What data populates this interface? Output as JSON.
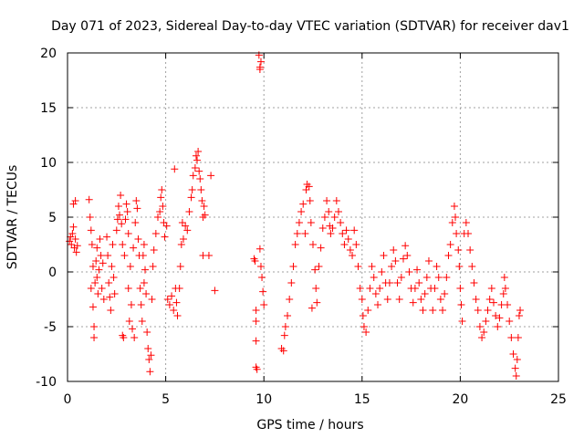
{
  "chart_data": {
    "type": "scatter",
    "title": "Day 071 of 2023, Sidereal Day-to-day VTEC variation (SDTVAR) for receiver dav1",
    "xlabel": "GPS time / hours",
    "ylabel": "SDTVAR / TECUs",
    "xlim": [
      0,
      25
    ],
    "ylim": [
      -10,
      20
    ],
    "xticks": [
      0,
      5,
      10,
      15,
      20,
      25
    ],
    "yticks": [
      -10,
      -5,
      0,
      5,
      10,
      15,
      20
    ],
    "xtick_labels": [
      "0",
      "5",
      "10",
      "15",
      "20",
      "25"
    ],
    "ytick_labels": [
      "-10",
      "-5",
      "0",
      "5",
      "10",
      "15",
      "20"
    ],
    "grid": true,
    "marker": "+",
    "color": "#ff0000",
    "series": [
      {
        "name": "dav1",
        "points": [
          [
            0.1,
            2.8
          ],
          [
            0.15,
            3.2
          ],
          [
            0.2,
            2.5
          ],
          [
            0.25,
            3.5
          ],
          [
            0.3,
            4.1
          ],
          [
            0.3,
            6.2
          ],
          [
            0.35,
            2.2
          ],
          [
            0.4,
            3.0
          ],
          [
            0.4,
            6.5
          ],
          [
            0.45,
            1.8
          ],
          [
            0.5,
            2.4
          ],
          [
            1.1,
            6.6
          ],
          [
            1.15,
            5.0
          ],
          [
            1.2,
            3.8
          ],
          [
            1.2,
            -1.5
          ],
          [
            1.25,
            2.5
          ],
          [
            1.3,
            0.5
          ],
          [
            1.3,
            -3.2
          ],
          [
            1.35,
            -5.0
          ],
          [
            1.35,
            -6.0
          ],
          [
            1.4,
            -1.0
          ],
          [
            1.45,
            1.0
          ],
          [
            1.5,
            2.2
          ],
          [
            1.5,
            -0.5
          ],
          [
            1.55,
            -2.0
          ],
          [
            1.6,
            0.2
          ],
          [
            1.65,
            3.0
          ],
          [
            1.7,
            1.5
          ],
          [
            1.75,
            -1.5
          ],
          [
            1.8,
            0.8
          ],
          [
            1.85,
            -2.5
          ],
          [
            2.0,
            3.2
          ],
          [
            2.05,
            1.5
          ],
          [
            2.1,
            -1.0
          ],
          [
            2.15,
            -2.3
          ],
          [
            2.2,
            -3.5
          ],
          [
            2.25,
            0.5
          ],
          [
            2.3,
            2.5
          ],
          [
            2.35,
            -0.5
          ],
          [
            2.4,
            -2.0
          ],
          [
            2.5,
            3.8
          ],
          [
            2.55,
            4.8
          ],
          [
            2.6,
            6.0
          ],
          [
            2.65,
            5.2
          ],
          [
            2.7,
            7.0
          ],
          [
            2.75,
            4.4
          ],
          [
            2.8,
            2.5
          ],
          [
            2.8,
            -5.8
          ],
          [
            2.85,
            -6.0
          ],
          [
            2.9,
            1.5
          ],
          [
            2.95,
            4.8
          ],
          [
            3.0,
            6.2
          ],
          [
            3.05,
            5.5
          ],
          [
            3.1,
            3.5
          ],
          [
            3.1,
            -1.5
          ],
          [
            3.15,
            -4.5
          ],
          [
            3.2,
            0.5
          ],
          [
            3.25,
            -3.0
          ],
          [
            3.3,
            -5.2
          ],
          [
            3.35,
            2.2
          ],
          [
            3.4,
            -6.0
          ],
          [
            3.45,
            4.5
          ],
          [
            3.5,
            6.5
          ],
          [
            3.55,
            5.8
          ],
          [
            3.6,
            3.0
          ],
          [
            3.65,
            1.5
          ],
          [
            3.7,
            -1.5
          ],
          [
            3.75,
            -3.0
          ],
          [
            3.8,
            -4.5
          ],
          [
            3.85,
            1.5
          ],
          [
            3.9,
            -1.0
          ],
          [
            3.9,
            2.5
          ],
          [
            3.95,
            0.2
          ],
          [
            4.0,
            -2.0
          ],
          [
            4.05,
            -5.5
          ],
          [
            4.1,
            -7.0
          ],
          [
            4.15,
            -8.0
          ],
          [
            4.2,
            -9.1
          ],
          [
            4.25,
            -7.6
          ],
          [
            4.3,
            -2.5
          ],
          [
            4.35,
            0.5
          ],
          [
            4.4,
            2.0
          ],
          [
            4.5,
            3.5
          ],
          [
            4.6,
            5.0
          ],
          [
            4.7,
            5.5
          ],
          [
            4.75,
            6.8
          ],
          [
            4.8,
            7.5
          ],
          [
            4.85,
            6.0
          ],
          [
            4.9,
            4.5
          ],
          [
            4.95,
            3.2
          ],
          [
            5.05,
            4.2
          ],
          [
            5.1,
            -2.5
          ],
          [
            5.2,
            -3.0
          ],
          [
            5.3,
            -2.2
          ],
          [
            5.4,
            -3.5
          ],
          [
            5.45,
            9.4
          ],
          [
            5.5,
            -1.5
          ],
          [
            5.55,
            -2.8
          ],
          [
            5.6,
            -4.0
          ],
          [
            5.7,
            -1.5
          ],
          [
            5.75,
            0.5
          ],
          [
            5.8,
            2.5
          ],
          [
            5.85,
            4.5
          ],
          [
            5.9,
            3.0
          ],
          [
            6.0,
            4.2
          ],
          [
            6.1,
            3.8
          ],
          [
            6.2,
            5.5
          ],
          [
            6.3,
            6.8
          ],
          [
            6.35,
            7.5
          ],
          [
            6.4,
            8.8
          ],
          [
            6.5,
            9.5
          ],
          [
            6.55,
            10.6
          ],
          [
            6.6,
            10.2
          ],
          [
            6.65,
            11.0
          ],
          [
            6.7,
            9.2
          ],
          [
            6.75,
            8.5
          ],
          [
            6.8,
            7.5
          ],
          [
            6.85,
            6.5
          ],
          [
            6.9,
            5.0
          ],
          [
            6.95,
            6.0
          ],
          [
            7.0,
            5.2
          ],
          [
            6.9,
            1.5
          ],
          [
            7.2,
            1.5
          ],
          [
            7.3,
            8.8
          ],
          [
            7.5,
            -1.7
          ],
          [
            9.5,
            1.2
          ],
          [
            9.55,
            1.0
          ],
          [
            9.6,
            -4.5
          ],
          [
            9.6,
            -6.3
          ],
          [
            9.6,
            -8.7
          ],
          [
            9.65,
            -8.9
          ],
          [
            9.6,
            -3.5
          ],
          [
            9.75,
            19.8
          ],
          [
            9.8,
            18.7
          ],
          [
            9.8,
            18.5
          ],
          [
            9.85,
            19.2
          ],
          [
            9.8,
            2.1
          ],
          [
            9.85,
            0.5
          ],
          [
            9.9,
            -0.5
          ],
          [
            9.95,
            -1.8
          ],
          [
            10.0,
            -3.0
          ],
          [
            10.9,
            -7.0
          ],
          [
            11.0,
            -7.2
          ],
          [
            11.05,
            -5.8
          ],
          [
            11.1,
            -5.0
          ],
          [
            11.2,
            -4.0
          ],
          [
            11.3,
            -2.5
          ],
          [
            11.4,
            -1.0
          ],
          [
            11.5,
            0.5
          ],
          [
            11.6,
            2.5
          ],
          [
            11.7,
            3.5
          ],
          [
            11.8,
            4.5
          ],
          [
            11.9,
            5.5
          ],
          [
            12.0,
            6.2
          ],
          [
            12.1,
            3.5
          ],
          [
            12.15,
            7.5
          ],
          [
            12.2,
            8.0
          ],
          [
            12.3,
            7.8
          ],
          [
            12.35,
            6.5
          ],
          [
            12.4,
            4.5
          ],
          [
            12.45,
            -3.3
          ],
          [
            12.5,
            2.5
          ],
          [
            12.6,
            0.2
          ],
          [
            12.65,
            -1.5
          ],
          [
            12.7,
            -2.8
          ],
          [
            12.8,
            0.5
          ],
          [
            12.9,
            2.2
          ],
          [
            13.0,
            4.0
          ],
          [
            13.1,
            5.0
          ],
          [
            13.2,
            6.5
          ],
          [
            13.3,
            5.5
          ],
          [
            13.35,
            4.2
          ],
          [
            13.4,
            3.5
          ],
          [
            13.5,
            4.0
          ],
          [
            13.6,
            5.0
          ],
          [
            13.7,
            6.5
          ],
          [
            13.8,
            5.5
          ],
          [
            13.9,
            4.5
          ],
          [
            14.0,
            3.5
          ],
          [
            14.1,
            2.5
          ],
          [
            14.2,
            3.8
          ],
          [
            14.3,
            3.0
          ],
          [
            14.4,
            2.0
          ],
          [
            14.5,
            1.5
          ],
          [
            14.6,
            3.8
          ],
          [
            14.7,
            2.5
          ],
          [
            14.8,
            0.5
          ],
          [
            14.9,
            -1.5
          ],
          [
            15.0,
            -2.5
          ],
          [
            15.05,
            -4.0
          ],
          [
            15.1,
            -5.0
          ],
          [
            15.2,
            -5.5
          ],
          [
            15.3,
            -3.5
          ],
          [
            15.4,
            -1.5
          ],
          [
            15.5,
            0.5
          ],
          [
            15.6,
            -0.5
          ],
          [
            15.7,
            -2.0
          ],
          [
            15.8,
            -3.0
          ],
          [
            15.9,
            -1.5
          ],
          [
            16.0,
            0.0
          ],
          [
            16.1,
            1.5
          ],
          [
            16.2,
            -1.0
          ],
          [
            16.3,
            -2.5
          ],
          [
            16.4,
            -1.0
          ],
          [
            16.5,
            0.5
          ],
          [
            16.6,
            2.0
          ],
          [
            16.7,
            1.0
          ],
          [
            16.8,
            -1.0
          ],
          [
            16.9,
            -2.5
          ],
          [
            17.0,
            -0.5
          ],
          [
            17.1,
            1.2
          ],
          [
            17.2,
            2.4
          ],
          [
            17.3,
            1.5
          ],
          [
            17.4,
            0.0
          ],
          [
            17.5,
            -1.5
          ],
          [
            17.6,
            -2.8
          ],
          [
            17.7,
            -1.5
          ],
          [
            17.8,
            0.2
          ],
          [
            17.9,
            -1.0
          ],
          [
            18.0,
            -2.5
          ],
          [
            18.1,
            -3.5
          ],
          [
            18.2,
            -2.0
          ],
          [
            18.3,
            -0.5
          ],
          [
            18.4,
            1.0
          ],
          [
            18.5,
            -1.5
          ],
          [
            18.6,
            -3.5
          ],
          [
            18.7,
            -1.5
          ],
          [
            18.8,
            0.5
          ],
          [
            18.9,
            -0.5
          ],
          [
            19.0,
            -2.5
          ],
          [
            19.1,
            -3.5
          ],
          [
            19.2,
            -2.0
          ],
          [
            19.3,
            -0.5
          ],
          [
            19.4,
            1.5
          ],
          [
            19.5,
            2.5
          ],
          [
            19.6,
            4.5
          ],
          [
            19.7,
            6.0
          ],
          [
            19.75,
            5.0
          ],
          [
            19.8,
            3.5
          ],
          [
            19.9,
            2.0
          ],
          [
            19.95,
            0.5
          ],
          [
            20.0,
            -1.5
          ],
          [
            20.05,
            -3.0
          ],
          [
            20.1,
            -4.5
          ],
          [
            20.2,
            3.5
          ],
          [
            20.3,
            4.5
          ],
          [
            20.4,
            3.5
          ],
          [
            20.5,
            2.0
          ],
          [
            20.6,
            0.5
          ],
          [
            20.7,
            -1.0
          ],
          [
            20.8,
            -2.5
          ],
          [
            20.9,
            -3.5
          ],
          [
            21.0,
            -5.0
          ],
          [
            21.1,
            -6.0
          ],
          [
            21.2,
            -5.5
          ],
          [
            21.3,
            -4.5
          ],
          [
            21.4,
            -3.5
          ],
          [
            21.5,
            -2.5
          ],
          [
            21.6,
            -1.5
          ],
          [
            21.7,
            -2.8
          ],
          [
            21.8,
            -4.0
          ],
          [
            21.9,
            -5.0
          ],
          [
            22.0,
            -4.2
          ],
          [
            22.1,
            -3.0
          ],
          [
            22.2,
            -2.0
          ],
          [
            22.25,
            -0.5
          ],
          [
            22.3,
            -1.5
          ],
          [
            22.4,
            -3.0
          ],
          [
            22.5,
            -4.5
          ],
          [
            22.6,
            -6.0
          ],
          [
            22.7,
            -7.5
          ],
          [
            22.8,
            -8.8
          ],
          [
            22.85,
            -9.5
          ],
          [
            22.9,
            -8.0
          ],
          [
            22.95,
            -6.0
          ],
          [
            23.0,
            -4.0
          ],
          [
            23.05,
            -3.5
          ]
        ]
      }
    ]
  }
}
